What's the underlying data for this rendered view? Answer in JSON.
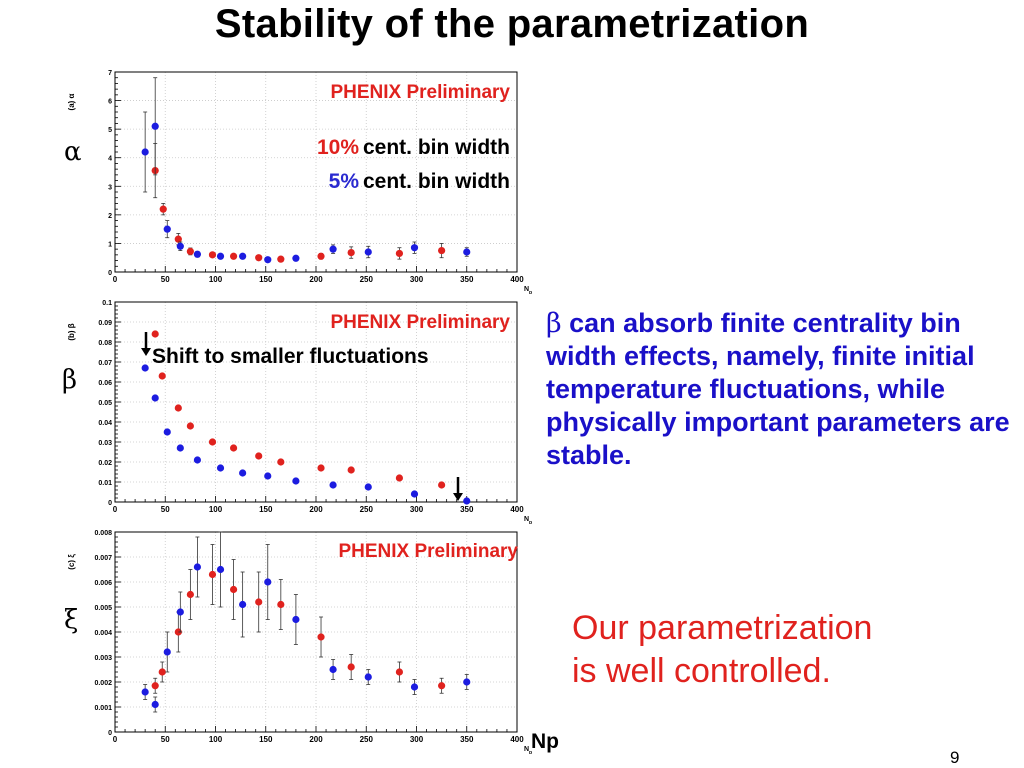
{
  "slide": {
    "title": "Stability of the parametrization",
    "greek_alpha": "α",
    "greek_beta": "β",
    "greek_xi": "ξ",
    "side_text_beta": "β",
    "side_text": "can absorb finite centrality bin width effects, namely, finite initial temperature fluctuations, while physically important parameters are stable.",
    "conclusion_line1": "Our parametrization",
    "conclusion_line2": "is well controlled.",
    "np_label": "Np",
    "page_number": "9"
  },
  "colors": {
    "red": "#e0221e",
    "blue": "#1c1ce0",
    "text_blue": "#1a10c8"
  },
  "chart_data": [
    {
      "type": "scatter",
      "panel_label": "(a) α",
      "xlabel": "N",
      "xlabel_sub": "p",
      "xlim": [
        0,
        400
      ],
      "ylim": [
        0,
        7
      ],
      "x_ticks": [
        "0",
        "50",
        "100",
        "150",
        "200",
        "250",
        "300",
        "350",
        "400"
      ],
      "y_ticks": [
        "0",
        "1",
        "2",
        "3",
        "4",
        "5",
        "6",
        "7"
      ],
      "preliminary": "PHENIX Preliminary",
      "legend_red_pct": "10%",
      "legend_red_text": "cent. bin width",
      "legend_blue_pct": "5%",
      "legend_blue_text": "cent. bin width",
      "series": [
        {
          "name": "10% cent. bin width",
          "color": "#e0221e",
          "points": [
            [
              40,
              3.55,
              0.95
            ],
            [
              48,
              2.2,
              0.2
            ],
            [
              63,
              1.15,
              0.2
            ],
            [
              75,
              0.72,
              0.12
            ],
            [
              97,
              0.6,
              0.08
            ],
            [
              118,
              0.55,
              0.07
            ],
            [
              143,
              0.5,
              0.06
            ],
            [
              165,
              0.45,
              0.06
            ],
            [
              205,
              0.55,
              0.1
            ],
            [
              235,
              0.68,
              0.2
            ],
            [
              283,
              0.65,
              0.2
            ],
            [
              325,
              0.75,
              0.25
            ]
          ]
        },
        {
          "name": "5% cent. bin width",
          "color": "#1c1ce0",
          "points": [
            [
              30,
              4.2,
              1.4
            ],
            [
              40,
              5.1,
              1.7
            ],
            [
              52,
              1.5,
              0.3
            ],
            [
              65,
              0.9,
              0.15
            ],
            [
              82,
              0.62,
              0.1
            ],
            [
              105,
              0.55,
              0.08
            ],
            [
              127,
              0.55,
              0.07
            ],
            [
              152,
              0.43,
              0.06
            ],
            [
              180,
              0.48,
              0.07
            ],
            [
              217,
              0.8,
              0.15
            ],
            [
              252,
              0.7,
              0.2
            ],
            [
              298,
              0.85,
              0.2
            ],
            [
              350,
              0.7,
              0.15
            ]
          ]
        }
      ]
    },
    {
      "type": "scatter",
      "panel_label": "(b) β",
      "xlabel": "N",
      "xlabel_sub": "p",
      "xlim": [
        0,
        400
      ],
      "ylim": [
        0,
        0.1
      ],
      "x_ticks": [
        "0",
        "50",
        "100",
        "150",
        "200",
        "250",
        "300",
        "350",
        "400"
      ],
      "y_ticks": [
        "0",
        "0.01",
        "0.02",
        "0.03",
        "0.04",
        "0.05",
        "0.06",
        "0.07",
        "0.08",
        "0.09",
        "0.1"
      ],
      "preliminary": "PHENIX Preliminary",
      "annotation": "Shift to smaller fluctuations",
      "series": [
        {
          "name": "10% cent. bin width",
          "color": "#e0221e",
          "points": [
            [
              40,
              0.084,
              0
            ],
            [
              47,
              0.063,
              0
            ],
            [
              63,
              0.047,
              0
            ],
            [
              75,
              0.038,
              0
            ],
            [
              97,
              0.03,
              0
            ],
            [
              118,
              0.027,
              0
            ],
            [
              143,
              0.023,
              0
            ],
            [
              165,
              0.02,
              0
            ],
            [
              205,
              0.017,
              0
            ],
            [
              235,
              0.016,
              0
            ],
            [
              283,
              0.012,
              0
            ],
            [
              325,
              0.0085,
              0
            ]
          ]
        },
        {
          "name": "5% cent. bin width",
          "color": "#1c1ce0",
          "points": [
            [
              30,
              0.067,
              0
            ],
            [
              40,
              0.052,
              0
            ],
            [
              52,
              0.035,
              0
            ],
            [
              65,
              0.027,
              0
            ],
            [
              82,
              0.021,
              0
            ],
            [
              105,
              0.017,
              0
            ],
            [
              127,
              0.0145,
              0
            ],
            [
              152,
              0.013,
              0
            ],
            [
              180,
              0.0105,
              0
            ],
            [
              217,
              0.0085,
              0
            ],
            [
              252,
              0.0075,
              0
            ],
            [
              298,
              0.004,
              0
            ],
            [
              350,
              0.0005,
              0
            ]
          ]
        }
      ]
    },
    {
      "type": "scatter",
      "panel_label": "(c) ξ",
      "xlabel": "N",
      "xlabel_sub": "p",
      "xlim": [
        0,
        400
      ],
      "ylim": [
        0,
        0.008
      ],
      "x_ticks": [
        "0",
        "50",
        "100",
        "150",
        "200",
        "250",
        "300",
        "350",
        "400"
      ],
      "y_ticks": [
        "0",
        "0.001",
        "0.002",
        "0.003",
        "0.004",
        "0.005",
        "0.006",
        "0.007",
        "0.008"
      ],
      "preliminary": "PHENIX Preliminary",
      "series": [
        {
          "name": "10% cent. bin width",
          "color": "#e0221e",
          "points": [
            [
              40,
              0.00185,
              0.0003
            ],
            [
              47,
              0.0024,
              0.0004
            ],
            [
              63,
              0.004,
              0.0008
            ],
            [
              75,
              0.0055,
              0.001
            ],
            [
              97,
              0.0063,
              0.0012
            ],
            [
              118,
              0.0057,
              0.0012
            ],
            [
              143,
              0.0052,
              0.0012
            ],
            [
              165,
              0.0051,
              0.001
            ],
            [
              205,
              0.0038,
              0.0008
            ],
            [
              235,
              0.0026,
              0.0005
            ],
            [
              283,
              0.0024,
              0.0004
            ],
            [
              325,
              0.00185,
              0.0003
            ]
          ]
        },
        {
          "name": "5% cent. bin width",
          "color": "#1c1ce0",
          "points": [
            [
              30,
              0.0016,
              0.0003
            ],
            [
              40,
              0.0011,
              0.0003
            ],
            [
              52,
              0.0032,
              0.0008
            ],
            [
              65,
              0.0048,
              0.0008
            ],
            [
              82,
              0.0066,
              0.0012
            ],
            [
              105,
              0.0065,
              0.0015
            ],
            [
              127,
              0.0051,
              0.0013
            ],
            [
              152,
              0.006,
              0.0015
            ],
            [
              180,
              0.0045,
              0.001
            ],
            [
              217,
              0.0025,
              0.0004
            ],
            [
              252,
              0.0022,
              0.0003
            ],
            [
              298,
              0.0018,
              0.0003
            ],
            [
              350,
              0.002,
              0.0003
            ]
          ]
        }
      ]
    }
  ]
}
